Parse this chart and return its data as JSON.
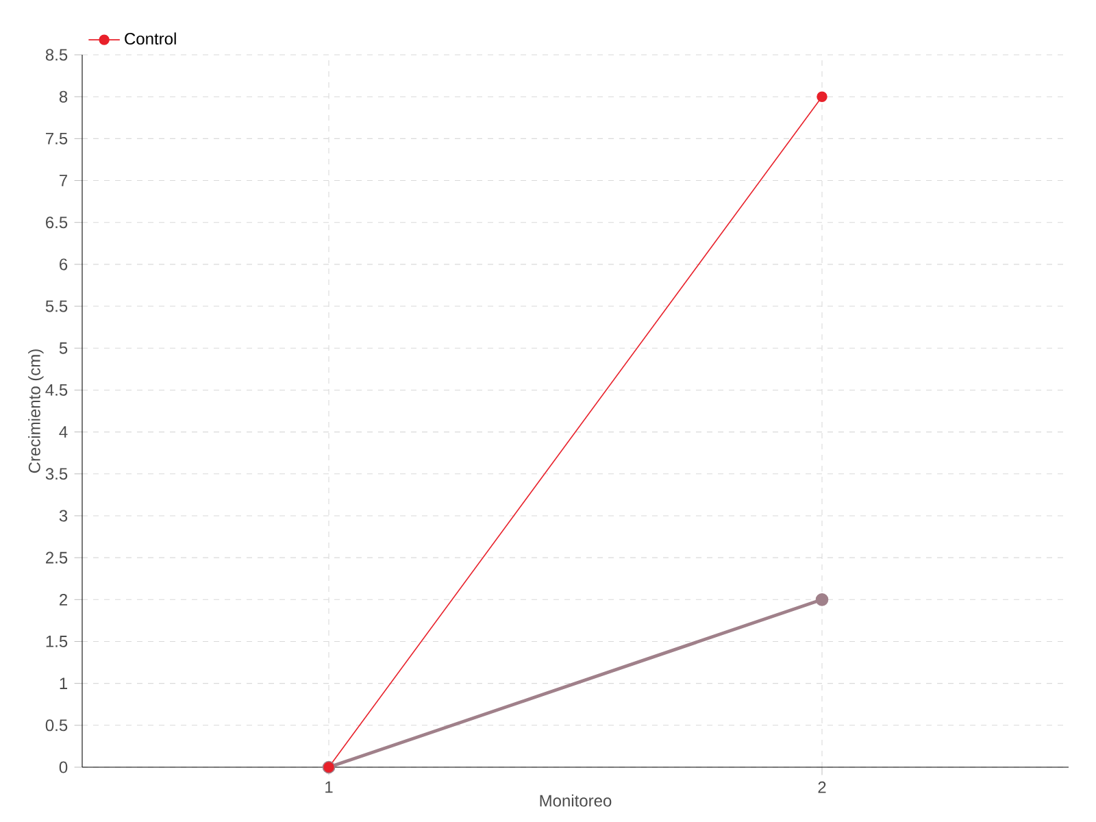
{
  "chart_data": {
    "type": "line",
    "xlabel": "Monitoreo",
    "ylabel": "Crecimiento (cm)",
    "x": [
      1,
      2
    ],
    "series": [
      {
        "color": "#a0808a",
        "values": [
          0,
          2
        ]
      },
      {
        "name": "Control",
        "color": "#e8202a",
        "values": [
          0,
          8
        ]
      }
    ],
    "xlim": [
      0.5,
      2.5
    ],
    "ylim": [
      0,
      8.5
    ],
    "xticks": [
      1,
      2
    ],
    "yticks": [
      0,
      0.5,
      1,
      1.5,
      2,
      2.5,
      3,
      3.5,
      4,
      4.5,
      5,
      5.5,
      6,
      6.5,
      7,
      7.5,
      8,
      8.5
    ],
    "grid": true,
    "legend": "top left",
    "marker": "circle",
    "line_style": "solid"
  }
}
